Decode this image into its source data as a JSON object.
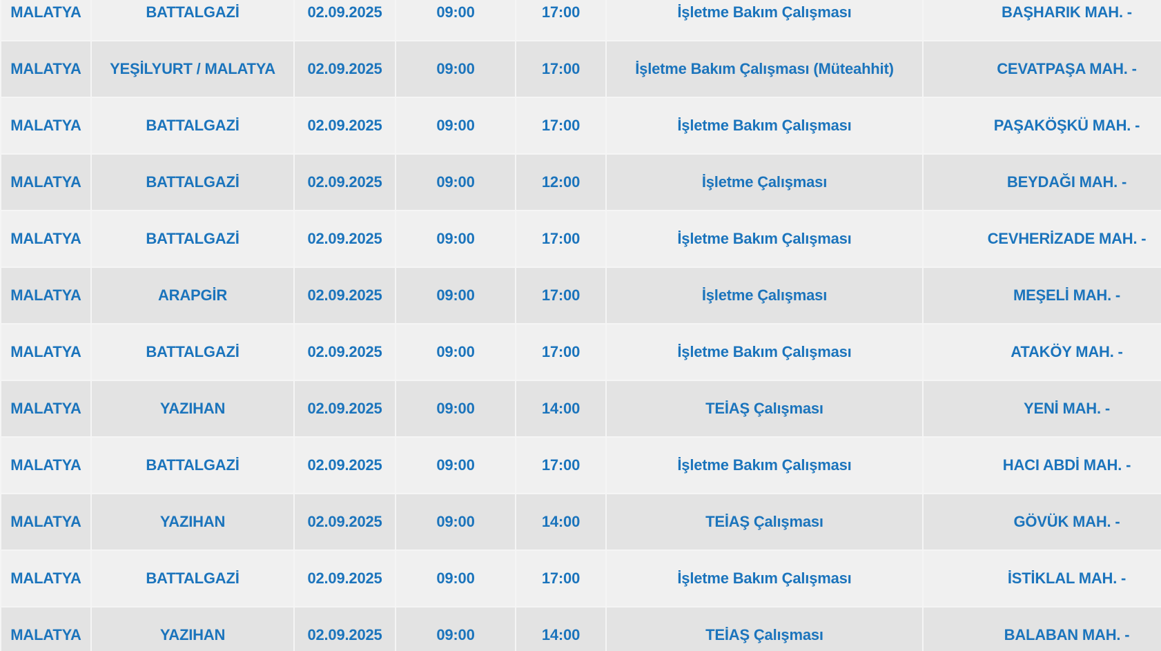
{
  "colors": {
    "text_blue": "#1b74bc",
    "row_light": "#f0f0f0",
    "row_dark": "#e3e3e3",
    "separator": "#f5f5f5"
  },
  "table": {
    "rows": [
      {
        "city": "MALATYA",
        "district": "BATTALGAZİ",
        "date": "02.09.2025",
        "start": "09:00",
        "end": "17:00",
        "reason": "İşletme Bakım Çalışması",
        "neighborhood": "BAŞHARIK MAH. -"
      },
      {
        "city": "MALATYA",
        "district": "YEŞİLYURT / MALATYA",
        "date": "02.09.2025",
        "start": "09:00",
        "end": "17:00",
        "reason": "İşletme Bakım Çalışması (Müteahhit)",
        "neighborhood": "CEVATPAŞA MAH. -"
      },
      {
        "city": "MALATYA",
        "district": "BATTALGAZİ",
        "date": "02.09.2025",
        "start": "09:00",
        "end": "17:00",
        "reason": "İşletme Bakım Çalışması",
        "neighborhood": "PAŞAKÖŞKÜ MAH. -"
      },
      {
        "city": "MALATYA",
        "district": "BATTALGAZİ",
        "date": "02.09.2025",
        "start": "09:00",
        "end": "12:00",
        "reason": "İşletme Çalışması",
        "neighborhood": "BEYDAĞI MAH. -"
      },
      {
        "city": "MALATYA",
        "district": "BATTALGAZİ",
        "date": "02.09.2025",
        "start": "09:00",
        "end": "17:00",
        "reason": "İşletme Bakım Çalışması",
        "neighborhood": "CEVHERİZADE MAH. -"
      },
      {
        "city": "MALATYA",
        "district": "ARAPGİR",
        "date": "02.09.2025",
        "start": "09:00",
        "end": "17:00",
        "reason": "İşletme Çalışması",
        "neighborhood": "MEŞELİ MAH. -"
      },
      {
        "city": "MALATYA",
        "district": "BATTALGAZİ",
        "date": "02.09.2025",
        "start": "09:00",
        "end": "17:00",
        "reason": "İşletme Bakım Çalışması",
        "neighborhood": "ATAKÖY MAH. -"
      },
      {
        "city": "MALATYA",
        "district": "YAZIHAN",
        "date": "02.09.2025",
        "start": "09:00",
        "end": "14:00",
        "reason": "TEİAŞ Çalışması",
        "neighborhood": "YENİ MAH. -"
      },
      {
        "city": "MALATYA",
        "district": "BATTALGAZİ",
        "date": "02.09.2025",
        "start": "09:00",
        "end": "17:00",
        "reason": "İşletme Bakım Çalışması",
        "neighborhood": "HACI ABDİ MAH. -"
      },
      {
        "city": "MALATYA",
        "district": "YAZIHAN",
        "date": "02.09.2025",
        "start": "09:00",
        "end": "14:00",
        "reason": "TEİAŞ Çalışması",
        "neighborhood": "GÖVÜK MAH. -"
      },
      {
        "city": "MALATYA",
        "district": "BATTALGAZİ",
        "date": "02.09.2025",
        "start": "09:00",
        "end": "17:00",
        "reason": "İşletme Bakım Çalışması",
        "neighborhood": "İSTİKLAL MAH. -"
      },
      {
        "city": "MALATYA",
        "district": "YAZIHAN",
        "date": "02.09.2025",
        "start": "09:00",
        "end": "14:00",
        "reason": "TEİAŞ Çalışması",
        "neighborhood": "BALABAN MAH. -"
      }
    ]
  }
}
